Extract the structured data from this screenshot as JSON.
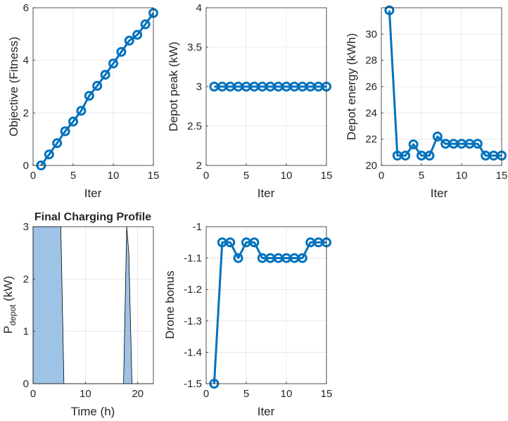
{
  "chart_data": [
    {
      "type": "line",
      "title": "",
      "xlabel": "Iter",
      "ylabel": "Objective (Fitness)",
      "xlim": [
        0,
        15
      ],
      "ylim": [
        0,
        6
      ],
      "xticks": [
        0,
        5,
        10,
        15
      ],
      "yticks": [
        0,
        2,
        4,
        6
      ],
      "xtick_labels": [
        "0",
        "5",
        "10",
        "15"
      ],
      "ytick_labels": [
        "0",
        "2",
        "4",
        "6"
      ],
      "grid": true,
      "markers": true,
      "color": "#0072BD",
      "x": [
        1,
        2,
        3,
        4,
        5,
        6,
        7,
        8,
        9,
        10,
        11,
        12,
        13,
        14,
        15
      ],
      "y": [
        0.0,
        0.42,
        0.85,
        1.3,
        1.67,
        2.08,
        2.65,
        3.03,
        3.45,
        3.88,
        4.32,
        4.75,
        4.97,
        5.37,
        5.8
      ]
    },
    {
      "type": "line",
      "title": "",
      "xlabel": "Iter",
      "ylabel": "Depot peak (kW)",
      "xlim": [
        0,
        15
      ],
      "ylim": [
        2,
        4
      ],
      "xticks": [
        0,
        5,
        10,
        15
      ],
      "yticks": [
        2,
        2.5,
        3,
        3.5,
        4
      ],
      "xtick_labels": [
        "0",
        "5",
        "10",
        "15"
      ],
      "ytick_labels": [
        "2",
        "2.5",
        "3",
        "3.5",
        "4"
      ],
      "grid": true,
      "markers": true,
      "color": "#0072BD",
      "x": [
        1,
        2,
        3,
        4,
        5,
        6,
        7,
        8,
        9,
        10,
        11,
        12,
        13,
        14,
        15
      ],
      "y": [
        3,
        3,
        3,
        3,
        3,
        3,
        3,
        3,
        3,
        3,
        3,
        3,
        3,
        3,
        3
      ]
    },
    {
      "type": "line",
      "title": "",
      "xlabel": "Iter",
      "ylabel": "Depot energy (kWh)",
      "xlim": [
        0,
        15
      ],
      "ylim": [
        20,
        32
      ],
      "xticks": [
        0,
        5,
        10,
        15
      ],
      "yticks": [
        20,
        22,
        24,
        26,
        28,
        30
      ],
      "xtick_labels": [
        "0",
        "5",
        "10",
        "15"
      ],
      "ytick_labels": [
        "20",
        "22",
        "24",
        "26",
        "28",
        "30"
      ],
      "grid": true,
      "markers": true,
      "color": "#0072BD",
      "x": [
        1,
        2,
        3,
        4,
        5,
        6,
        7,
        8,
        9,
        10,
        11,
        12,
        13,
        14,
        15
      ],
      "y": [
        31.8,
        20.75,
        20.75,
        21.6,
        20.75,
        20.75,
        22.2,
        21.65,
        21.65,
        21.65,
        21.65,
        21.65,
        20.75,
        20.75,
        20.75
      ]
    },
    {
      "type": "area",
      "title": "Final Charging Profile",
      "xlabel": "Time (h)",
      "ylabel": "P",
      "ylabel_sub": "depot",
      "ylabel_unit": " (kW)",
      "xlim": [
        0,
        23
      ],
      "ylim": [
        0,
        3
      ],
      "xticks": [
        0,
        10,
        20
      ],
      "yticks": [
        0,
        1,
        2,
        3
      ],
      "xtick_labels": [
        "0",
        "10",
        "20"
      ],
      "ytick_labels": [
        "0",
        "1",
        "2",
        "3"
      ],
      "grid": true,
      "fill_color": "#9DC3E6",
      "edge_color": "#000000",
      "x": [
        0,
        5.3,
        5.9,
        17.3,
        17.9,
        18.3,
        18.9,
        23
      ],
      "y": [
        3,
        3,
        0,
        0,
        3,
        2.5,
        0,
        0
      ]
    },
    {
      "type": "line",
      "title": "",
      "xlabel": "Iter",
      "ylabel": "Drone bonus",
      "xlim": [
        0,
        15
      ],
      "ylim": [
        -1.5,
        -1
      ],
      "xticks": [
        0,
        5,
        10,
        15
      ],
      "yticks": [
        -1.5,
        -1.4,
        -1.3,
        -1.2,
        -1.1,
        -1
      ],
      "xtick_labels": [
        "0",
        "5",
        "10",
        "15"
      ],
      "ytick_labels": [
        "-1.5",
        "-1.4",
        "-1.3",
        "-1.2",
        "-1.1",
        "-1"
      ],
      "grid": true,
      "markers": true,
      "color": "#0072BD",
      "x": [
        1,
        2,
        3,
        4,
        5,
        6,
        7,
        8,
        9,
        10,
        11,
        12,
        13,
        14,
        15
      ],
      "y": [
        -1.5,
        -1.05,
        -1.05,
        -1.1,
        -1.05,
        -1.05,
        -1.1,
        -1.1,
        -1.1,
        -1.1,
        -1.1,
        -1.1,
        -1.05,
        -1.05,
        -1.05
      ]
    }
  ]
}
